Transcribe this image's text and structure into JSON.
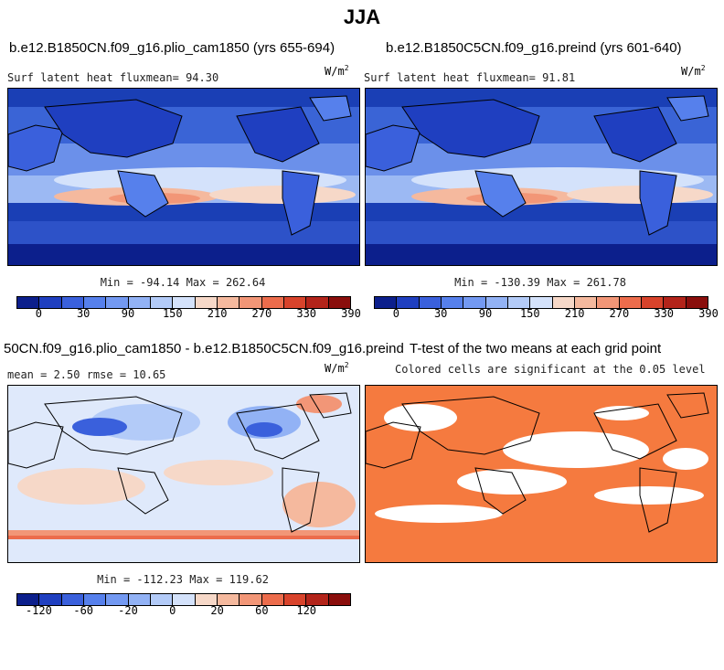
{
  "title": "JJA",
  "panel1": {
    "title": "b.e12.B1850CN.f09_g16.plio_cam1850 (yrs 655-694)",
    "left_label": "Surf latent heat fluxmean=  94.30",
    "units_base": "W/m",
    "units_exp": "2",
    "minmax": "Min = -94.14 Max = 262.64"
  },
  "panel2": {
    "title": "b.e12.B1850C5CN.f09_g16.preind (yrs 601-640)",
    "left_label": "Surf latent heat fluxmean=  91.81",
    "units_base": "W/m",
    "units_exp": "2",
    "minmax": "Min = -130.39 Max = 261.78"
  },
  "panel3": {
    "title": "50CN.f09_g16.plio_cam1850 - b.e12.B1850C5CN.f09_g16.preind",
    "left_label": "mean =   2.50     rmse =  10.65",
    "units_base": "W/m",
    "units_exp": "2",
    "minmax": "Min = -112.23 Max = 119.62"
  },
  "panel4": {
    "title": "T-test of the two means at each grid point",
    "subtitle": "Colored cells are significant at the 0.05 level"
  },
  "colorbar_abs": {
    "colors": [
      "#0c1f8c",
      "#1f3fc0",
      "#3a60dc",
      "#5680ec",
      "#7399f2",
      "#92b2f5",
      "#b3cbf8",
      "#d4e2fb",
      "#f6d8c8",
      "#f5b99e",
      "#f29677",
      "#ec6c4c",
      "#d8432b",
      "#b3241a",
      "#8a0e0c"
    ],
    "ticks": [
      "0",
      "30",
      "90",
      "150",
      "210",
      "270",
      "330",
      "390"
    ]
  },
  "colorbar_diff": {
    "colors": [
      "#0c1f8c",
      "#1f3fc0",
      "#3a60dc",
      "#5680ec",
      "#7399f2",
      "#92b2f5",
      "#b3cbf8",
      "#d4e2fb",
      "#f6d8c8",
      "#f5b99e",
      "#f29677",
      "#ec6c4c",
      "#d8432b",
      "#b3241a",
      "#8a0e0c"
    ],
    "ticks": [
      "-120",
      "-60",
      "-20",
      "0",
      "20",
      "60",
      "120"
    ]
  }
}
